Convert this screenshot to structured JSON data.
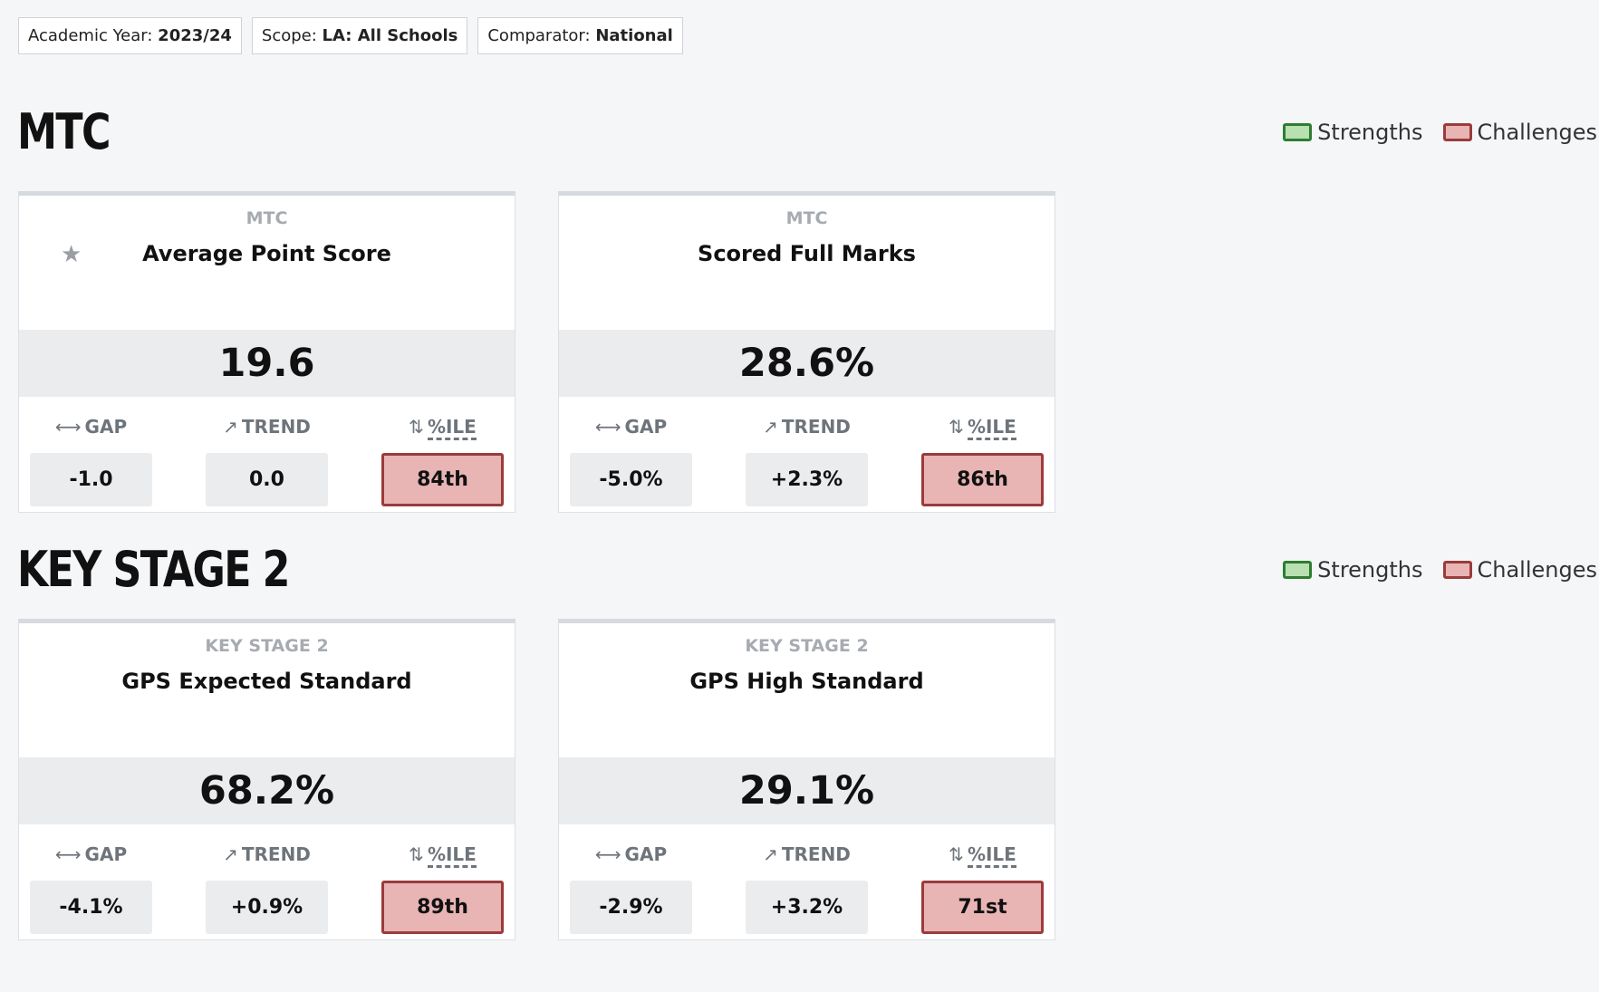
{
  "filters": [
    {
      "label": "Academic Year:",
      "value": "2023/24"
    },
    {
      "label": "Scope:",
      "value": "LA: All Schools"
    },
    {
      "label": "Comparator:",
      "value": "National"
    }
  ],
  "sections": [
    {
      "title": "MTC",
      "legend": [
        "Strengths",
        "Challenges"
      ],
      "cards": [
        {
          "category": "MTC",
          "title": "Average Point Score",
          "starred": true,
          "value": "19.6",
          "metrics": [
            {
              "label": "GAP",
              "value": "-1.0"
            },
            {
              "label": "TREND",
              "value": "0.0"
            },
            {
              "label": "%ILE",
              "value": "84th"
            }
          ]
        },
        {
          "category": "MTC",
          "title": "Scored Full Marks",
          "value": "28.6%",
          "metrics": [
            {
              "label": "GAP",
              "value": "-5.0%"
            },
            {
              "label": "TREND",
              "value": "+2.3%"
            },
            {
              "label": "%ILE",
              "value": "86th"
            }
          ]
        }
      ]
    },
    {
      "title": "KEY STAGE 2",
      "legend": [
        "Strengths",
        "Challenges"
      ],
      "cards": [
        {
          "category": "KEY STAGE 2",
          "title": "GPS Expected Standard",
          "value": "68.2%",
          "metrics": [
            {
              "label": "GAP",
              "value": "-4.1%"
            },
            {
              "label": "TREND",
              "value": "+0.9%"
            },
            {
              "label": "%ILE",
              "value": "89th"
            }
          ]
        },
        {
          "category": "KEY STAGE 2",
          "title": "GPS High Standard",
          "value": "29.1%",
          "metrics": [
            {
              "label": "GAP",
              "value": "-2.9%"
            },
            {
              "label": "TREND",
              "value": "+3.2%"
            },
            {
              "label": "%ILE",
              "value": "71st"
            }
          ]
        }
      ]
    }
  ]
}
